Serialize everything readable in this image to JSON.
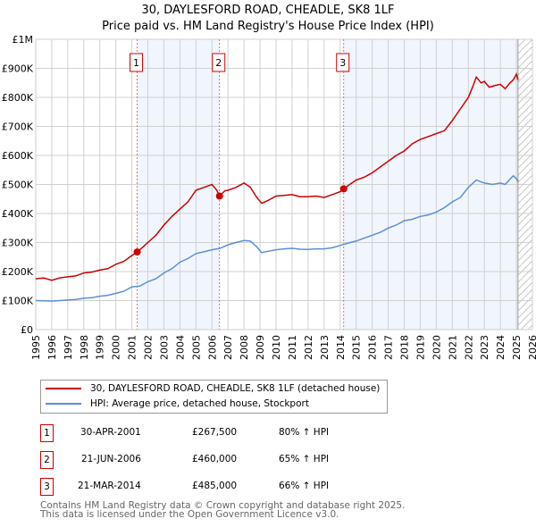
{
  "title": "30, DAYLESFORD ROAD, CHEADLE, SK8 1LF",
  "subtitle": "Price paid vs. HM Land Registry's House Price Index (HPI)",
  "chart_data": {
    "type": "line",
    "title": "30, DAYLESFORD ROAD, CHEADLE, SK8 1LF",
    "subtitle": "Price paid vs. HM Land Registry's House Price Index (HPI)",
    "xlim": [
      1995,
      2026
    ],
    "ylim": [
      0,
      1000000
    ],
    "grid": true,
    "x_ticks": [
      "1995",
      "1996",
      "1997",
      "1998",
      "1999",
      "2000",
      "2001",
      "2002",
      "2003",
      "2004",
      "2005",
      "2006",
      "2007",
      "2008",
      "2009",
      "2010",
      "2011",
      "2012",
      "2013",
      "2014",
      "2015",
      "2016",
      "2017",
      "2018",
      "2019",
      "2020",
      "2021",
      "2022",
      "2023",
      "2024",
      "2025",
      "2026"
    ],
    "y_ticks": [
      {
        "v": 0,
        "label": "£0"
      },
      {
        "v": 100000,
        "label": "£100K"
      },
      {
        "v": 200000,
        "label": "£200K"
      },
      {
        "v": 300000,
        "label": "£300K"
      },
      {
        "v": 400000,
        "label": "£400K"
      },
      {
        "v": 500000,
        "label": "£500K"
      },
      {
        "v": 600000,
        "label": "£600K"
      },
      {
        "v": 700000,
        "label": "£700K"
      },
      {
        "v": 800000,
        "label": "£800K"
      },
      {
        "v": 900000,
        "label": "£900K"
      },
      {
        "v": 1000000,
        "label": "£1M"
      }
    ],
    "series": [
      {
        "name": "30, DAYLESFORD ROAD, CHEADLE, SK8 1LF (detached house)",
        "color": "#cc0000",
        "x": [
          1995,
          1995.5,
          1996,
          1996.5,
          1997,
          1997.5,
          1998,
          1998.5,
          1999,
          1999.5,
          2000,
          2000.5,
          2001,
          2001.33,
          2001.7,
          2002,
          2002.5,
          2003,
          2003.5,
          2004,
          2004.5,
          2005,
          2005.5,
          2006,
          2006.3,
          2006.47,
          2006.8,
          2007,
          2007.5,
          2008,
          2008.4,
          2008.8,
          2009.1,
          2009.5,
          2010,
          2010.5,
          2011,
          2011.5,
          2012,
          2012.5,
          2013,
          2013.5,
          2014,
          2014.22,
          2014.6,
          2015,
          2015.5,
          2016,
          2016.5,
          2017,
          2017.5,
          2018,
          2018.5,
          2019,
          2019.5,
          2020,
          2020.5,
          2021,
          2021.5,
          2022,
          2022.3,
          2022.5,
          2022.8,
          2023,
          2023.3,
          2023.6,
          2024,
          2024.3,
          2024.6,
          2024.8,
          2025,
          2025.1
        ],
        "y": [
          175000,
          178000,
          170000,
          178000,
          182000,
          185000,
          195000,
          198000,
          205000,
          210000,
          225000,
          235000,
          255000,
          267500,
          285000,
          300000,
          325000,
          360000,
          390000,
          415000,
          440000,
          480000,
          490000,
          500000,
          480000,
          460000,
          478000,
          480000,
          490000,
          505000,
          490000,
          455000,
          435000,
          445000,
          460000,
          462000,
          465000,
          458000,
          458000,
          460000,
          455000,
          465000,
          475000,
          485000,
          500000,
          515000,
          525000,
          540000,
          560000,
          580000,
          600000,
          615000,
          640000,
          655000,
          665000,
          675000,
          685000,
          720000,
          760000,
          800000,
          840000,
          870000,
          850000,
          855000,
          835000,
          840000,
          845000,
          830000,
          850000,
          860000,
          880000,
          860000
        ]
      },
      {
        "name": "HPI: Average price, detached house, Stockport",
        "color": "#5b8fd6",
        "x": [
          1995,
          1995.5,
          1996,
          1996.5,
          1997,
          1997.5,
          1998,
          1998.5,
          1999,
          1999.5,
          2000,
          2000.5,
          2001,
          2001.5,
          2002,
          2002.5,
          2003,
          2003.5,
          2004,
          2004.5,
          2005,
          2005.5,
          2006,
          2006.5,
          2007,
          2007.5,
          2008,
          2008.4,
          2008.8,
          2009.1,
          2009.5,
          2010,
          2010.5,
          2011,
          2011.5,
          2012,
          2012.5,
          2013,
          2013.5,
          2014,
          2014.5,
          2015,
          2015.5,
          2016,
          2016.5,
          2017,
          2017.5,
          2018,
          2018.5,
          2019,
          2019.5,
          2020,
          2020.5,
          2021,
          2021.5,
          2022,
          2022.5,
          2023,
          2023.5,
          2024,
          2024.3,
          2024.8,
          2025,
          2025.1
        ],
        "y": [
          100000,
          99000,
          98000,
          100000,
          102000,
          104000,
          108000,
          110000,
          115000,
          118000,
          125000,
          132000,
          147000,
          150000,
          165000,
          175000,
          195000,
          210000,
          232000,
          245000,
          262000,
          268000,
          275000,
          280000,
          292000,
          300000,
          307000,
          305000,
          285000,
          265000,
          270000,
          275000,
          278000,
          280000,
          277000,
          276000,
          278000,
          278000,
          282000,
          290000,
          298000,
          305000,
          315000,
          325000,
          335000,
          350000,
          360000,
          375000,
          380000,
          390000,
          395000,
          405000,
          420000,
          440000,
          455000,
          490000,
          515000,
          505000,
          500000,
          505000,
          500000,
          530000,
          520000,
          510000
        ]
      }
    ],
    "shaded_ranges": [
      [
        2001.33,
        2006.47
      ],
      [
        2014.22,
        2025.1
      ]
    ],
    "hatched_from": 2025.1,
    "annotations": [
      {
        "label": "1",
        "x": 2001.33,
        "y": 267500
      },
      {
        "label": "2",
        "x": 2006.47,
        "y": 460000
      },
      {
        "label": "3",
        "x": 2014.22,
        "y": 485000
      }
    ],
    "legend_placement": "below"
  },
  "legend": {
    "items": [
      {
        "label": "30, DAYLESFORD ROAD, CHEADLE, SK8 1LF (detached house)",
        "color": "#cc0000"
      },
      {
        "label": "HPI: Average price, detached house, Stockport",
        "color": "#5b8fd6"
      }
    ]
  },
  "sales": [
    {
      "num": "1",
      "date": "30-APR-2001",
      "price": "£267,500",
      "hpi": "80% ↑ HPI"
    },
    {
      "num": "2",
      "date": "21-JUN-2006",
      "price": "£460,000",
      "hpi": "65% ↑ HPI"
    },
    {
      "num": "3",
      "date": "21-MAR-2014",
      "price": "£485,000",
      "hpi": "66% ↑ HPI"
    }
  ],
  "footer": {
    "line1": "Contains HM Land Registry data © Crown copyright and database right 2025.",
    "line2": "This data is licensed under the Open Government Licence v3.0."
  }
}
